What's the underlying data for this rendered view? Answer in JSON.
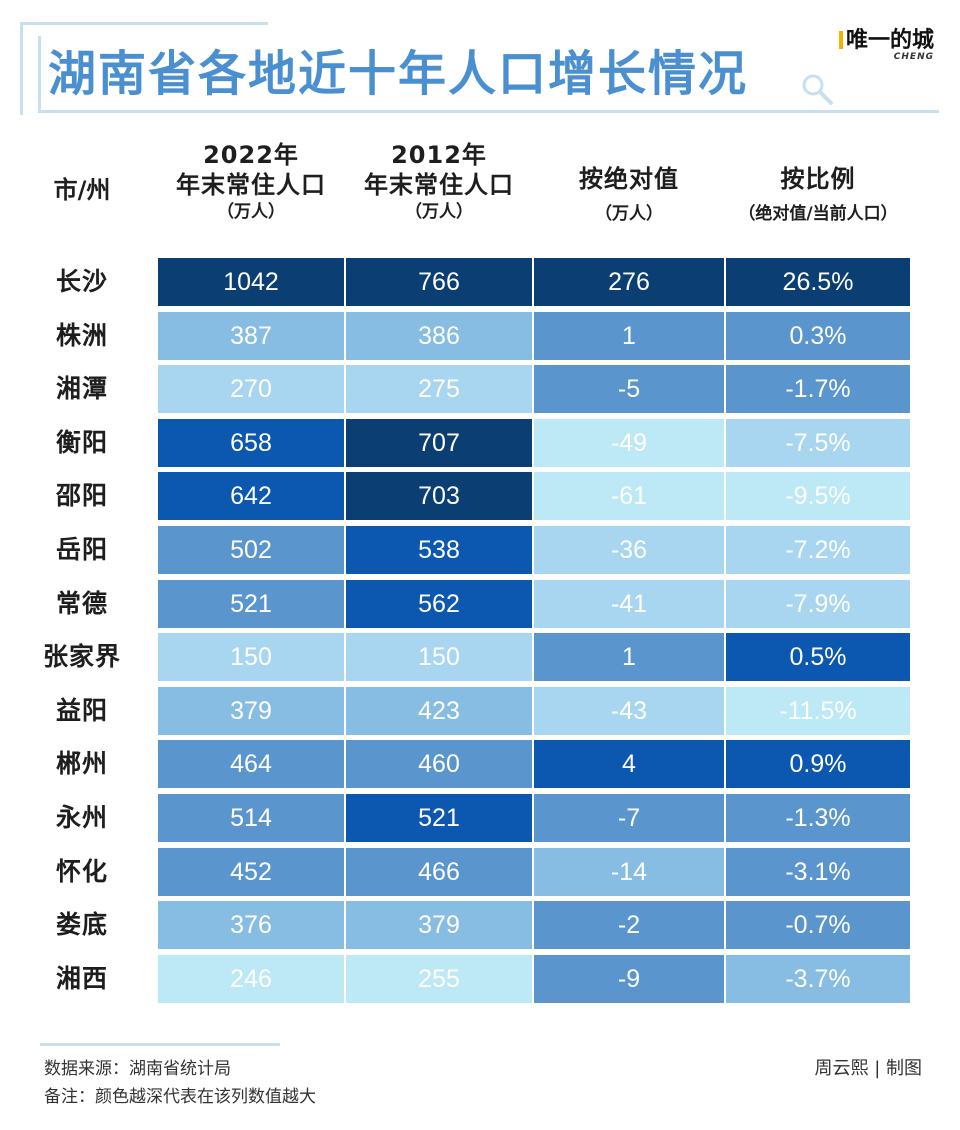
{
  "title": "湖南省各地近十年人口增长情况",
  "brand": {
    "name": "唯一的城",
    "sub": "CHENG"
  },
  "headers": {
    "city": "市/州",
    "col1": {
      "line1": "2022年",
      "line2": "年末常住人口",
      "line3": "（万人）"
    },
    "col2": {
      "line1": "2012年",
      "line2": "年末常住人口",
      "line3": "（万人）"
    },
    "col3": {
      "line1": "按绝对值",
      "line2": "（万人）"
    },
    "col4": {
      "line1": "按比例",
      "line2": "（绝对值/当前人口）"
    }
  },
  "colors": {
    "darkest": "#0b3f73",
    "dark": "#0c57b0",
    "mid_dark": "#2f7fcf",
    "mid": "#5b95cd",
    "light": "#88bde3",
    "lighter": "#a8d6f0",
    "lightest": "#bde8f6",
    "title": "#4a8fd0",
    "frame": "#c8dff0"
  },
  "chart_data": {
    "type": "table",
    "title": "湖南省各地近十年人口增长情况",
    "columns": [
      "市/州",
      "2022年年末常住人口（万人）",
      "2012年年末常住人口（万人）",
      "按绝对值（万人）",
      "按比例（绝对值/当前人口）"
    ],
    "rows": [
      {
        "city": "长沙",
        "pop2022": "1042",
        "pop2012": "766",
        "abs": "276",
        "ratio": "26.5%",
        "shades": [
          "darkest",
          "darkest",
          "darkest",
          "darkest"
        ]
      },
      {
        "city": "株洲",
        "pop2022": "387",
        "pop2012": "386",
        "abs": "1",
        "ratio": "0.3%",
        "shades": [
          "light",
          "light",
          "mid",
          "mid"
        ]
      },
      {
        "city": "湘潭",
        "pop2022": "270",
        "pop2012": "275",
        "abs": "-5",
        "ratio": "-1.7%",
        "shades": [
          "lighter",
          "lighter",
          "mid",
          "mid"
        ]
      },
      {
        "city": "衡阳",
        "pop2022": "658",
        "pop2012": "707",
        "abs": "-49",
        "ratio": "-7.5%",
        "shades": [
          "dark",
          "darkest",
          "lightest",
          "lighter"
        ]
      },
      {
        "city": "邵阳",
        "pop2022": "642",
        "pop2012": "703",
        "abs": "-61",
        "ratio": "-9.5%",
        "shades": [
          "dark",
          "darkest",
          "lightest",
          "lightest"
        ]
      },
      {
        "city": "岳阳",
        "pop2022": "502",
        "pop2012": "538",
        "abs": "-36",
        "ratio": "-7.2%",
        "shades": [
          "mid",
          "dark",
          "lighter",
          "lighter"
        ]
      },
      {
        "city": "常德",
        "pop2022": "521",
        "pop2012": "562",
        "abs": "-41",
        "ratio": "-7.9%",
        "shades": [
          "mid",
          "dark",
          "lighter",
          "lighter"
        ]
      },
      {
        "city": "张家界",
        "pop2022": "150",
        "pop2012": "150",
        "abs": "1",
        "ratio": "0.5%",
        "shades": [
          "lighter",
          "lighter",
          "mid",
          "dark"
        ]
      },
      {
        "city": "益阳",
        "pop2022": "379",
        "pop2012": "423",
        "abs": "-43",
        "ratio": "-11.5%",
        "shades": [
          "light",
          "light",
          "lighter",
          "lightest"
        ]
      },
      {
        "city": "郴州",
        "pop2022": "464",
        "pop2012": "460",
        "abs": "4",
        "ratio": "0.9%",
        "shades": [
          "mid",
          "mid",
          "dark",
          "dark"
        ]
      },
      {
        "city": "永州",
        "pop2022": "514",
        "pop2012": "521",
        "abs": "-7",
        "ratio": "-1.3%",
        "shades": [
          "mid",
          "dark",
          "mid",
          "mid"
        ]
      },
      {
        "city": "怀化",
        "pop2022": "452",
        "pop2012": "466",
        "abs": "-14",
        "ratio": "-3.1%",
        "shades": [
          "mid",
          "mid",
          "light",
          "mid"
        ]
      },
      {
        "city": "娄底",
        "pop2022": "376",
        "pop2012": "379",
        "abs": "-2",
        "ratio": "-0.7%",
        "shades": [
          "light",
          "light",
          "mid",
          "mid"
        ]
      },
      {
        "city": "湘西",
        "pop2022": "246",
        "pop2012": "255",
        "abs": "-9",
        "ratio": "-3.7%",
        "shades": [
          "lightest",
          "lightest",
          "mid",
          "light"
        ]
      }
    ]
  },
  "footer": {
    "source": "数据来源：湖南省统计局",
    "note": "备注：颜色越深代表在该列数值越大",
    "credit": "周云熙 | 制图"
  }
}
